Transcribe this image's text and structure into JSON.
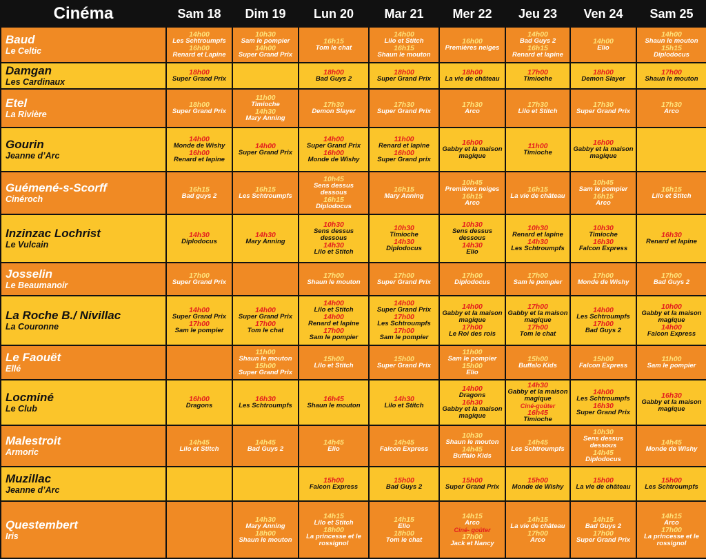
{
  "header": [
    "Cinéma",
    "Sam 18",
    "Dim 19",
    "Lun 20",
    "Mar 21",
    "Mer 22",
    "Jeu 23",
    "Ven 24",
    "Sam 25"
  ],
  "rows": [
    {
      "name": "Baud",
      "subtitle": "Le Celtic",
      "days": [
        [
          {
            "time": "14h00",
            "film": "Les Schtroumpfs"
          },
          {
            "time": "16h00",
            "film": "Renard et Lapine"
          }
        ],
        [
          {
            "time": "10h30",
            "film": "Sam le pompier"
          },
          {
            "time": "14h00",
            "film": "Super Grand Prix"
          }
        ],
        [
          {
            "time": "16h15",
            "film": "Tom le chat"
          }
        ],
        [
          {
            "time": "14h00",
            "film": "Lilo et Stitch"
          },
          {
            "time": "16h15",
            "film": "Shaun le mouton"
          }
        ],
        [
          {
            "time": "16h00",
            "film": "Premières neiges"
          }
        ],
        [
          {
            "time": "14h00",
            "film": "Bad Guys 2"
          },
          {
            "time": "16h15",
            "film": "Renard et lapine"
          }
        ],
        [
          {
            "time": "14h00",
            "film": "Elio"
          }
        ],
        [
          {
            "time": "14h00",
            "film": "Shaun le mouton"
          },
          {
            "time": "15h15",
            "film": "Diplodocus"
          }
        ]
      ]
    },
    {
      "name": "Damgan",
      "subtitle": "Les Cardinaux",
      "days": [
        [
          {
            "time": "18h00",
            "film": "Super Grand Prix"
          }
        ],
        [],
        [
          {
            "time": "18h00",
            "film": "Bad Guys 2"
          }
        ],
        [
          {
            "time": "18h00",
            "film": "Super Grand Prix"
          }
        ],
        [
          {
            "time": "18h00",
            "film": "La vie de château"
          }
        ],
        [
          {
            "time": "17h00",
            "film": "Timioche"
          }
        ],
        [
          {
            "time": "18h00",
            "film": "Demon Slayer"
          }
        ],
        [
          {
            "time": "17h00",
            "film": "Shaun le mouton"
          }
        ]
      ]
    },
    {
      "name": "Etel",
      "subtitle": "La Rivière",
      "days": [
        [
          {
            "time": "18h00",
            "film": "Super Grand Prix"
          }
        ],
        [
          {
            "time": "11h00",
            "film": "Timioche"
          },
          {
            "time": "14h30",
            "film": "Mary Anning"
          }
        ],
        [
          {
            "time": "17h30",
            "film": "Demon Slayer"
          }
        ],
        [
          {
            "time": "17h30",
            "film": "Super Grand Prix"
          }
        ],
        [
          {
            "time": "17h30",
            "film": "Arco"
          }
        ],
        [
          {
            "time": "17h30",
            "film": "Lilo et Stitch"
          }
        ],
        [
          {
            "time": "17h30",
            "film": "Super Grand Prix"
          }
        ],
        [
          {
            "time": "17h30",
            "film": "Arco"
          }
        ]
      ]
    },
    {
      "name": "Gourin",
      "subtitle": "Jeanne d’Arc",
      "days": [
        [
          {
            "time": "14h00",
            "film": "Monde de Wishy"
          },
          {
            "time": "16h00",
            "film": "Renard et lapine"
          }
        ],
        [
          {
            "time": "14h00",
            "film": "Super Grand Prix"
          }
        ],
        [
          {
            "time": "14h00",
            "film": "Super Grand Prix"
          },
          {
            "time": "16h00",
            "film": "Monde de Wishy"
          }
        ],
        [
          {
            "time": "11h00",
            "film": "Renard et lapine"
          },
          {
            "time": "16h00",
            "film": "Super Grand prix"
          }
        ],
        [
          {
            "time": "16h00",
            "film": "Gabby et la maison magique"
          }
        ],
        [
          {
            "time": "11h00",
            "film": "Timioche"
          }
        ],
        [
          {
            "time": "16h00",
            "film": "Gabby et la maison magique"
          }
        ],
        []
      ]
    },
    {
      "name": "Guémené-s-Scorff",
      "subtitle": "Cinéroch",
      "days": [
        [
          {
            "time": "16h15",
            "film": "Bad guys 2"
          }
        ],
        [
          {
            "time": "16h15",
            "film": "Les Schtroumpfs"
          }
        ],
        [
          {
            "time": "10h45",
            "film": "Sens dessus dessous"
          },
          {
            "time": "16h15",
            "film": "Diplodocus"
          }
        ],
        [
          {
            "time": "16h15",
            "film": "Mary Anning"
          }
        ],
        [
          {
            "time": "10h45",
            "film": "Premières neiges"
          },
          {
            "time": "16h15",
            "film": "Arco"
          }
        ],
        [
          {
            "time": "16h15",
            "film": "La vie de château"
          }
        ],
        [
          {
            "time": "10h45",
            "film": "Sam le pompier"
          },
          {
            "time": "16h15",
            "film": "Arco"
          }
        ],
        [
          {
            "time": "16h15",
            "film": "Lilo et Stitch"
          }
        ]
      ]
    },
    {
      "name": "Inzinzac Lochrist",
      "subtitle": "Le Vulcain",
      "days": [
        [
          {
            "time": "14h30",
            "film": "Diplodocus"
          }
        ],
        [
          {
            "time": "14h30",
            "film": "Mary Anning"
          }
        ],
        [
          {
            "time": "10h30",
            "film": "Sens dessus dessous"
          },
          {
            "time": "14h30",
            "film": "Lilo et Stitch"
          }
        ],
        [
          {
            "time": "10h30",
            "film": "Timioche"
          },
          {
            "time": "14h30",
            "film": "Diplodocus"
          }
        ],
        [
          {
            "time": "10h30",
            "film": "Sens dessus dessous"
          },
          {
            "time": "14h30",
            "film": "Elio"
          }
        ],
        [
          {
            "time": "10h30",
            "film": "Renard et lapine"
          },
          {
            "time": "14h30",
            "film": "Les Schtroumpfs"
          }
        ],
        [
          {
            "time": "10h30",
            "film": "Timioche"
          },
          {
            "time": "16h30",
            "film": "Falcon Express"
          }
        ],
        [
          {
            "time": "16h30",
            "film": "Renard et lapine"
          }
        ]
      ]
    },
    {
      "name": "Josselin",
      "subtitle": "Le Beaumanoir",
      "days": [
        [
          {
            "time": "17h00",
            "film": "Super Grand Prix"
          }
        ],
        [],
        [
          {
            "time": "17h00",
            "film": "Shaun le mouton"
          }
        ],
        [
          {
            "time": "17h00",
            "film": "Super Grand Prix"
          }
        ],
        [
          {
            "time": "17h00",
            "film": "Diplodocus"
          }
        ],
        [
          {
            "time": "17h00",
            "film": "Sam le pompier"
          }
        ],
        [
          {
            "time": "17h00",
            "film": "Monde de Wishy"
          }
        ],
        [
          {
            "time": "17h00",
            "film": "Bad Guys 2"
          }
        ]
      ]
    },
    {
      "name": "La Roche B./ Nivillac",
      "subtitle": "La Couronne",
      "days": [
        [
          {
            "time": "14h00",
            "film": "Super Grand Prix"
          },
          {
            "time": "17h00",
            "film": "Sam le pompier"
          }
        ],
        [
          {
            "time": "14h00",
            "film": "Super Grand Prix"
          },
          {
            "time": "17h00",
            "film": "Tom le chat"
          }
        ],
        [
          {
            "time": "14h00",
            "film": "Lilo et Stitch"
          },
          {
            "time": "14h00",
            "film": "Renard et lapine"
          },
          {
            "time": "17h00",
            "film": "Sam le pompier"
          }
        ],
        [
          {
            "time": "14h00",
            "film": "Super Grand Prix"
          },
          {
            "time": "17h00",
            "film": "Les Schtroumpfs"
          },
          {
            "time": "17h00",
            "film": "Sam le pompier"
          }
        ],
        [
          {
            "time": "14h00",
            "film": "Gabby et la maison magique"
          },
          {
            "time": "17h00",
            "film": "Le Roi des rois"
          }
        ],
        [
          {
            "time": "17h00",
            "film": "Gabby et la maison magique"
          },
          {
            "time": "17h00",
            "film": "Tom le chat"
          }
        ],
        [
          {
            "time": "14h00",
            "film": "Les Schtroumpfs"
          },
          {
            "time": "17h00",
            "film": "Bad Guys 2"
          }
        ],
        [
          {
            "time": "10h00",
            "film": "Gabby et la maison magique"
          },
          {
            "time": "14h00",
            "film": "Falcon Express"
          }
        ]
      ]
    },
    {
      "name": "Le Faouët",
      "subtitle": "Ellé",
      "days": [
        [],
        [
          {
            "time": "11h00",
            "film": "Shaun le mouton"
          },
          {
            "time": "15h00",
            "film": "Super Grand Prix"
          }
        ],
        [
          {
            "time": "15h00",
            "film": "Lilo et Stitch"
          }
        ],
        [
          {
            "time": "15h00",
            "film": "Super Grand Prix"
          }
        ],
        [
          {
            "time": "11h00",
            "film": "Sam le pompier"
          },
          {
            "time": "15h00",
            "film": "Elio"
          }
        ],
        [
          {
            "time": "15h00",
            "film": "Buffalo Kids"
          }
        ],
        [
          {
            "time": "15h00",
            "film": "Falcon Express"
          }
        ],
        [
          {
            "time": "11h00",
            "film": "Sam le pompier"
          }
        ]
      ]
    },
    {
      "name": "Locminé",
      "subtitle": "Le Club",
      "days": [
        [
          {
            "time": "16h00",
            "film": "Dragons"
          }
        ],
        [
          {
            "time": "16h30",
            "film": "Les Schtroumpfs"
          }
        ],
        [
          {
            "time": "16h45",
            "film": "Shaun le mouton"
          }
        ],
        [
          {
            "time": "14h30",
            "film": "Lilo et Stitch"
          }
        ],
        [
          {
            "time": "14h00",
            "film": "Dragons"
          },
          {
            "time": "16h30",
            "film": "Gabby et la maison magique"
          }
        ],
        [
          {
            "time": "14h30",
            "film": "Gabby et la maison magique",
            "note": "Ciné-goûter"
          },
          {
            "time": "16h45",
            "film": "Timioche"
          }
        ],
        [
          {
            "time": "14h00",
            "film": "Les Schtroumpfs"
          },
          {
            "time": "16h30",
            "film": "Super Grand Prix"
          }
        ],
        [
          {
            "time": "16h30",
            "film": "Gabby et la maison magique"
          }
        ]
      ]
    },
    {
      "name": "Malestroit",
      "subtitle": "Armoric",
      "days": [
        [
          {
            "time": "14h45",
            "film": "Lilo et Stitch"
          }
        ],
        [
          {
            "time": "14h45",
            "film": "Bad Guys 2"
          }
        ],
        [
          {
            "time": "14h45",
            "film": "Elio"
          }
        ],
        [
          {
            "time": "14h45",
            "film": "Falcon Express"
          }
        ],
        [
          {
            "time": "10h30",
            "film": "Shaun le mouton"
          },
          {
            "time": "14h45",
            "film": "Buffalo Kids"
          }
        ],
        [
          {
            "time": "14h45",
            "film": "Les Schtroumpfs"
          }
        ],
        [
          {
            "time": "10h30",
            "film": "Sens dessus dessous"
          },
          {
            "time": "14h45",
            "film": "Diplodocus"
          }
        ],
        [
          {
            "time": "14h45",
            "film": "Monde de Wishy"
          }
        ]
      ]
    },
    {
      "name": "Muzillac",
      "subtitle": "Jeanne d’Arc",
      "days": [
        [],
        [],
        [
          {
            "time": "15h00",
            "film": "Falcon Express"
          }
        ],
        [
          {
            "time": "15h00",
            "film": "Bad Guys 2"
          }
        ],
        [
          {
            "time": "15h00",
            "film": "Super Grand Prix"
          }
        ],
        [
          {
            "time": "15h00",
            "film": "Monde de Wishy"
          }
        ],
        [
          {
            "time": "15h00",
            "film": "La vie de château"
          }
        ],
        [
          {
            "time": "15h00",
            "film": "Les Schtroumpfs"
          }
        ]
      ]
    },
    {
      "name": "Questembert",
      "subtitle": "Iris",
      "days": [
        [],
        [
          {
            "time": "14h30",
            "film": "Mary Anning"
          },
          {
            "time": "18h00",
            "film": "Shaun le mouton"
          }
        ],
        [
          {
            "time": "14h15",
            "film": "Lilo et Stitch"
          },
          {
            "time": "18h00",
            "film": "La princesse et le rossignol"
          }
        ],
        [
          {
            "time": "14h15",
            "film": "Elio"
          },
          {
            "time": "18h00",
            "film": "Tom le chat"
          }
        ],
        [
          {
            "time": "14h15",
            "film": "Arco",
            "note": "Ciné- goûter"
          },
          {
            "time": "17h00",
            "film": "Jack et Nancy"
          }
        ],
        [
          {
            "time": "14h15",
            "film": "La vie de château"
          },
          {
            "time": "17h00",
            "film": "Arco"
          }
        ],
        [
          {
            "time": "14h15",
            "film": "Bad Guys 2"
          },
          {
            "time": "17h00",
            "film": "Super Grand Prix"
          }
        ],
        [
          {
            "time": "14h15",
            "film": "Arco"
          },
          {
            "time": "17h00",
            "film": "La princesse et le rossignol"
          }
        ]
      ]
    }
  ]
}
